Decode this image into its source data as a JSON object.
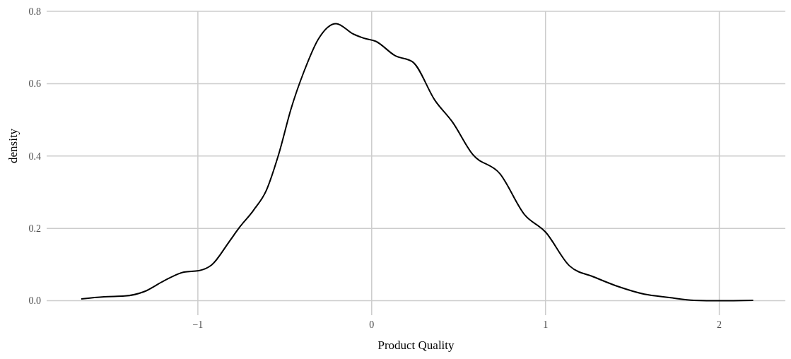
{
  "chart_data": {
    "type": "line",
    "xlabel": "Product Quality",
    "ylabel": "density",
    "xlim": [
      -1.87,
      2.38
    ],
    "ylim": [
      -0.04,
      0.8
    ],
    "xticks": [
      {
        "value": -1,
        "label": "−1"
      },
      0,
      1,
      2
    ],
    "yticks": [
      {
        "value": 0,
        "label": "0.0"
      },
      0.2,
      0.4,
      0.6,
      0.8
    ],
    "grid": true,
    "legend": false,
    "x": [
      -1.671,
      -1.54,
      -1.42,
      -1.31,
      -1.195,
      -1.08,
      -0.994,
      -0.92,
      -0.82,
      -0.765,
      -0.68,
      -0.607,
      -0.535,
      -0.463,
      -0.39,
      -0.306,
      -0.205,
      -0.105,
      -0.047,
      0.024,
      0.136,
      0.236,
      0.365,
      0.466,
      0.58,
      0.738,
      0.881,
      1.0,
      1.139,
      1.282,
      1.425,
      1.569,
      1.712,
      1.855,
      2.0,
      2.195
    ],
    "series": [
      {
        "color": "#000000",
        "values": [
          0.005,
          0.011,
          0.013,
          0.025,
          0.055,
          0.079,
          0.083,
          0.099,
          0.163,
          0.2,
          0.25,
          0.304,
          0.405,
          0.532,
          0.633,
          0.724,
          0.766,
          0.737,
          0.726,
          0.717,
          0.677,
          0.66,
          0.553,
          0.493,
          0.405,
          0.351,
          0.237,
          0.19,
          0.096,
          0.065,
          0.038,
          0.018,
          0.009,
          0.001,
          0.0,
          0.001
        ]
      }
    ]
  }
}
